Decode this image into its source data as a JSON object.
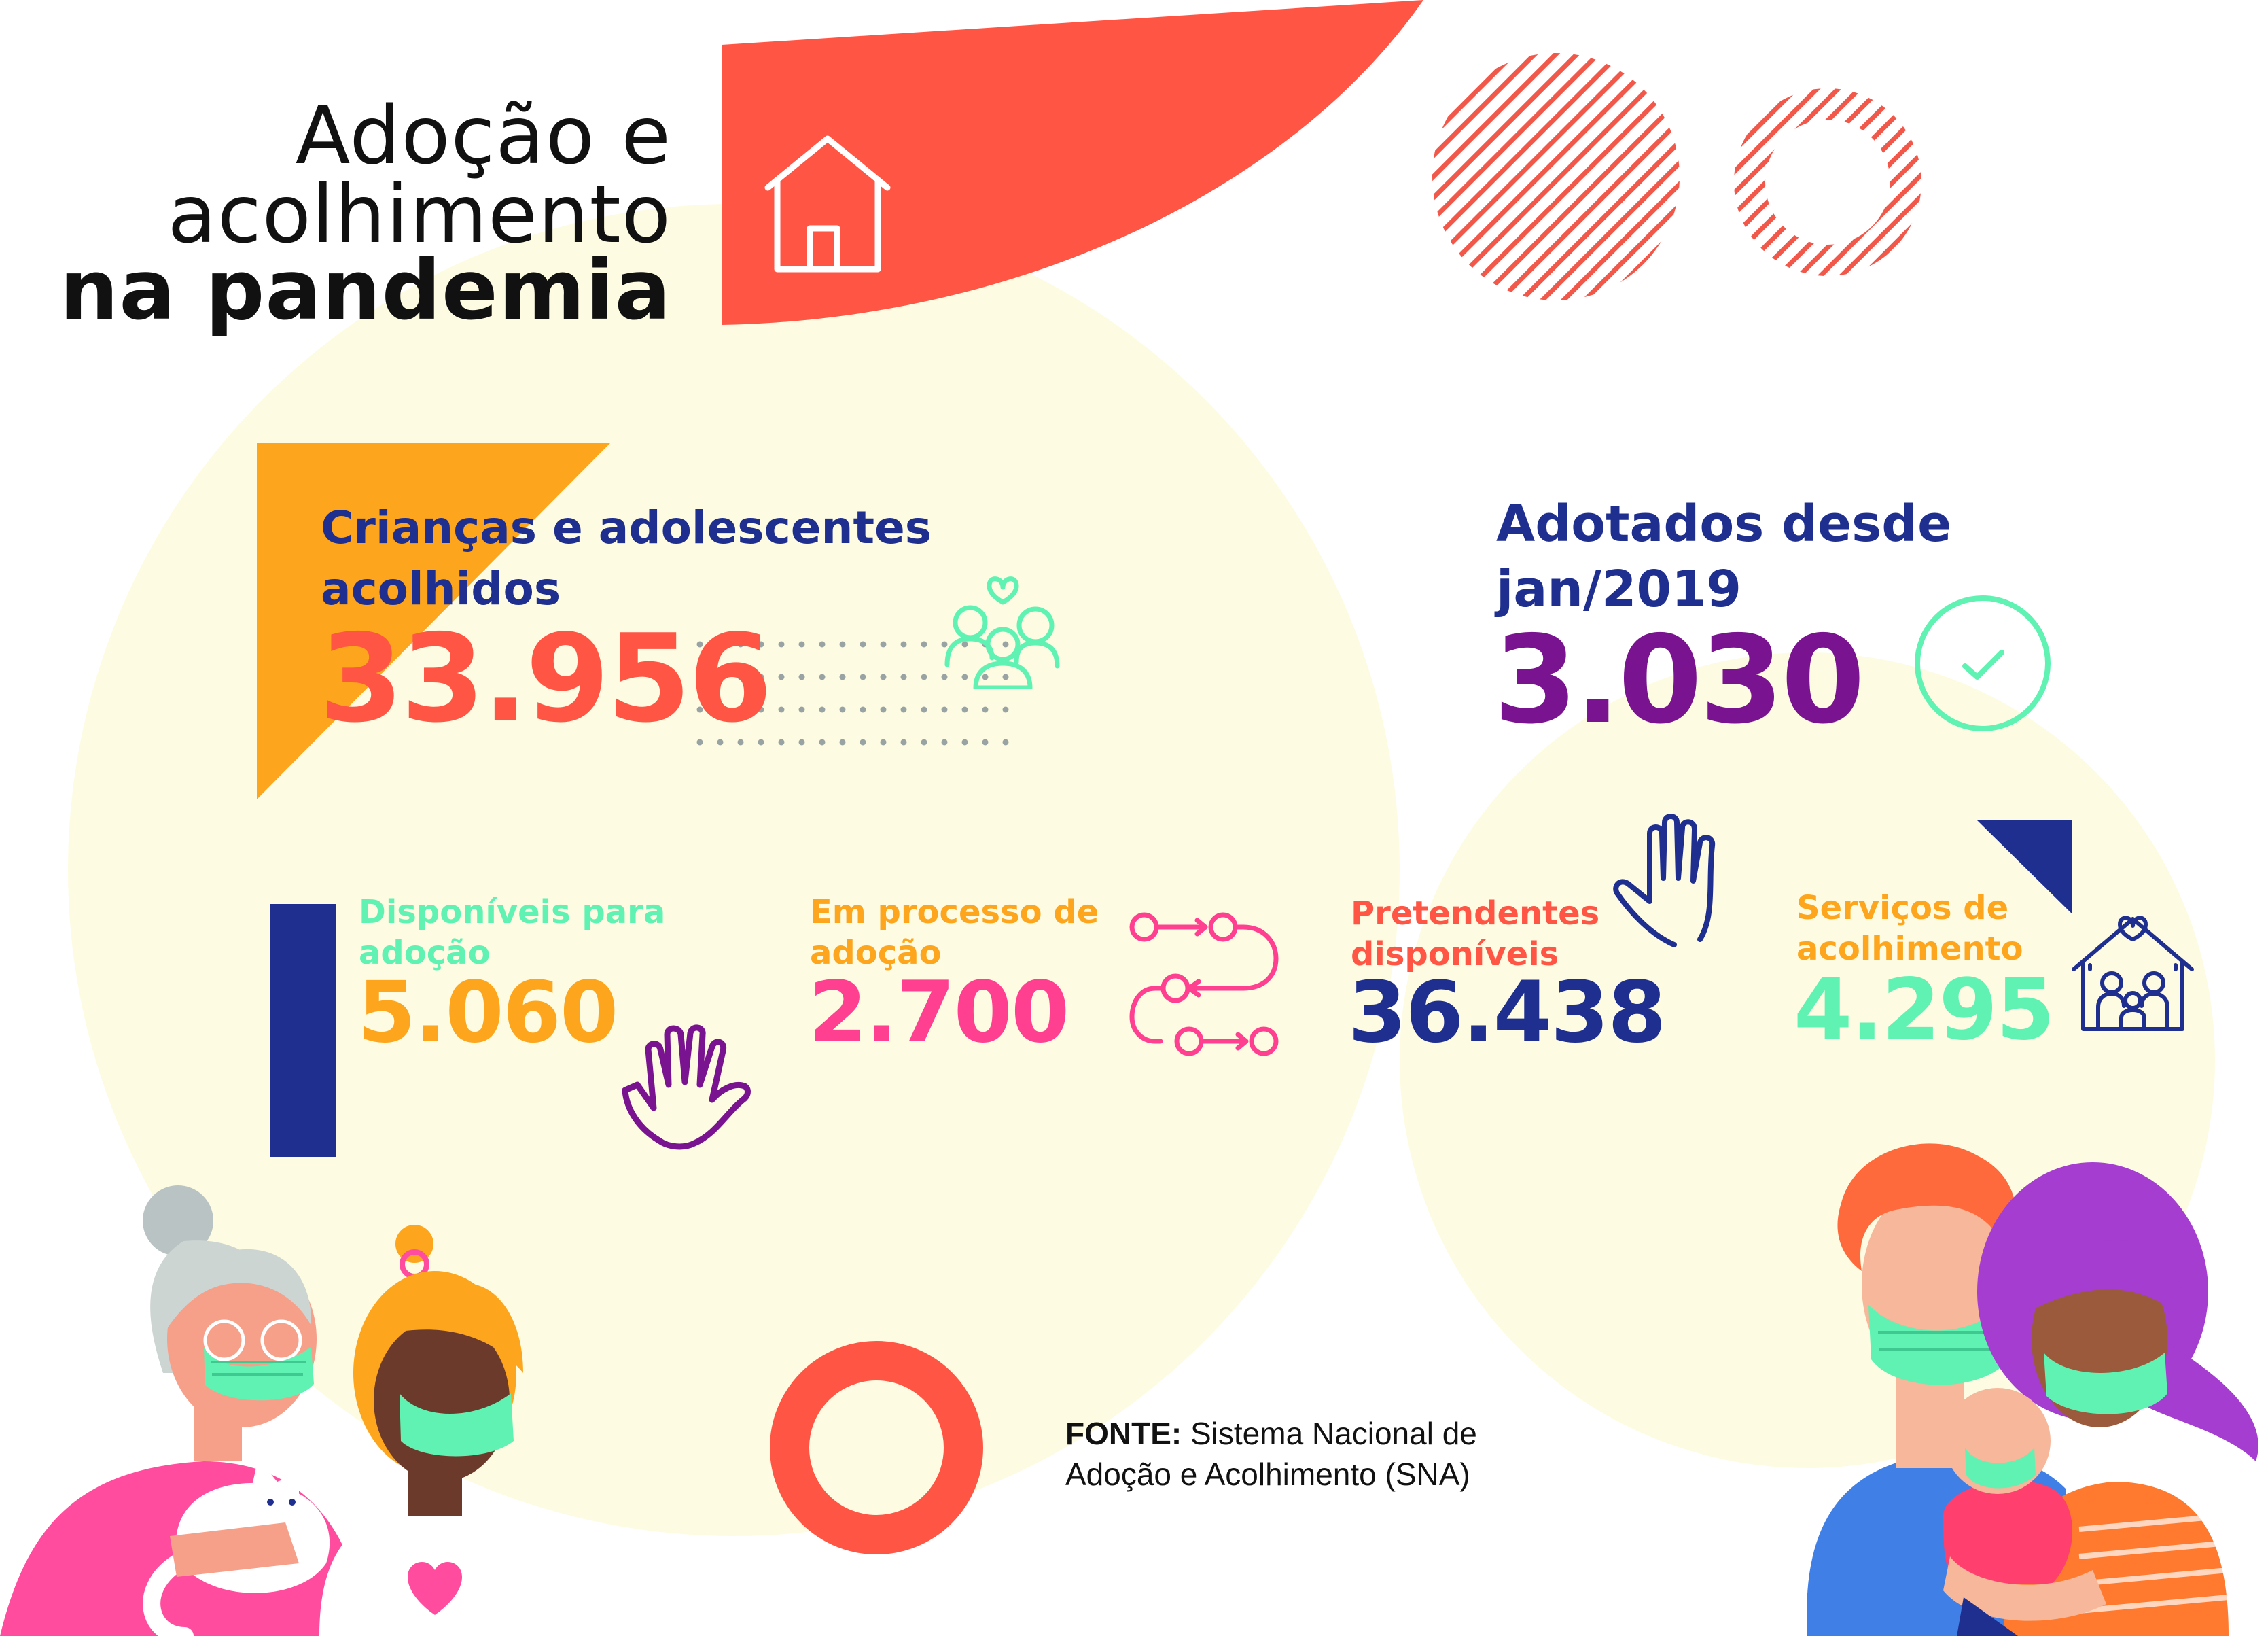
{
  "title": {
    "line1": "Adoção e",
    "line2": "acolhimento",
    "line3": "na pandemia"
  },
  "stats": {
    "acolhidos": {
      "label_line1": "Crianças e adolescentes",
      "label_line2": "acolhidos",
      "value": "33.956"
    },
    "adotados": {
      "label_line1": "Adotados desde",
      "label_line2": "jan/2019",
      "value": "3.030"
    },
    "disponiveis": {
      "label_line1": "Disponíveis para",
      "label_line2": "adoção",
      "value": "5.060"
    },
    "em_processo": {
      "label_line1": "Em processo de",
      "label_line2": "adoção",
      "value": "2.700"
    },
    "pretendentes": {
      "label_line1": "Pretendentes",
      "label_line2": "disponíveis",
      "value": "36.438"
    },
    "servicos": {
      "label_line1": "Serviços de",
      "label_line2": "acolhimento",
      "value": "4.295"
    }
  },
  "source": {
    "label": "FONTE:",
    "text_line1": " Sistema Nacional de",
    "text_line2": "Adoção e Acolhimento (SNA)"
  },
  "colors": {
    "coral": "#FF5545",
    "navy": "#1F2F8F",
    "purple": "#7A138F",
    "orange": "#FDA51C",
    "mint": "#5FF2B2",
    "pink": "#FF3F90",
    "cream": "#FDFCE2"
  },
  "icons": [
    "house-icon",
    "people-heart-icon",
    "check-circle-icon",
    "raised-hand-icon",
    "hand-icon",
    "process-flow-icon",
    "shelter-family-icon"
  ]
}
